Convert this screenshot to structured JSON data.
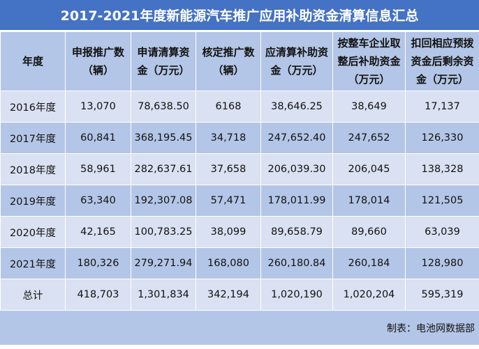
{
  "title": "2017-2021年度新能源汽车推广应用补助资金清算信息汇总",
  "headers": [
    "年度",
    "申报推广数（辆）",
    "申请清算资金（万元）",
    "核定推广数（辆）",
    "应清算补助资金（万元）",
    "按整车企业取整后补助资金（万元）",
    "扣回相应预拨资金后剩余资金（万元）"
  ],
  "rows": [
    [
      "2016年度",
      "13,070",
      "78,638.50",
      "6168",
      "38,646.25",
      "38,649",
      "17,137"
    ],
    [
      "2017年度",
      "60,841",
      "368,195.45",
      "34,718",
      "247,652.40",
      "247,652",
      "126,330"
    ],
    [
      "2018年度",
      "58,961",
      "282,637.61",
      "37,658",
      "206,039.30",
      "206,045",
      "138,328"
    ],
    [
      "2019年度",
      "63,340",
      "192,307.08",
      "57,471",
      "178,011.99",
      "178,014",
      "121,505"
    ],
    [
      "2020年度",
      "42,165",
      "100,783.25",
      "38,099",
      "89,658.79",
      "89,660",
      "63,039"
    ],
    [
      "2021年度",
      "180,326",
      "279,271.94",
      "168,080",
      "260,180.84",
      "260,184",
      "128,980"
    ],
    [
      "总计",
      "418,703",
      "1,301,834",
      "342,194",
      "1,020,190",
      "1,020,204",
      "595,319"
    ]
  ],
  "footer": "制表：电池网数据部",
  "colors": {
    "title_bg": "#4472C4",
    "header_bg": "#B4C6E7",
    "row_light": "#D9E1F2",
    "row_dark": "#B4C6E7"
  }
}
